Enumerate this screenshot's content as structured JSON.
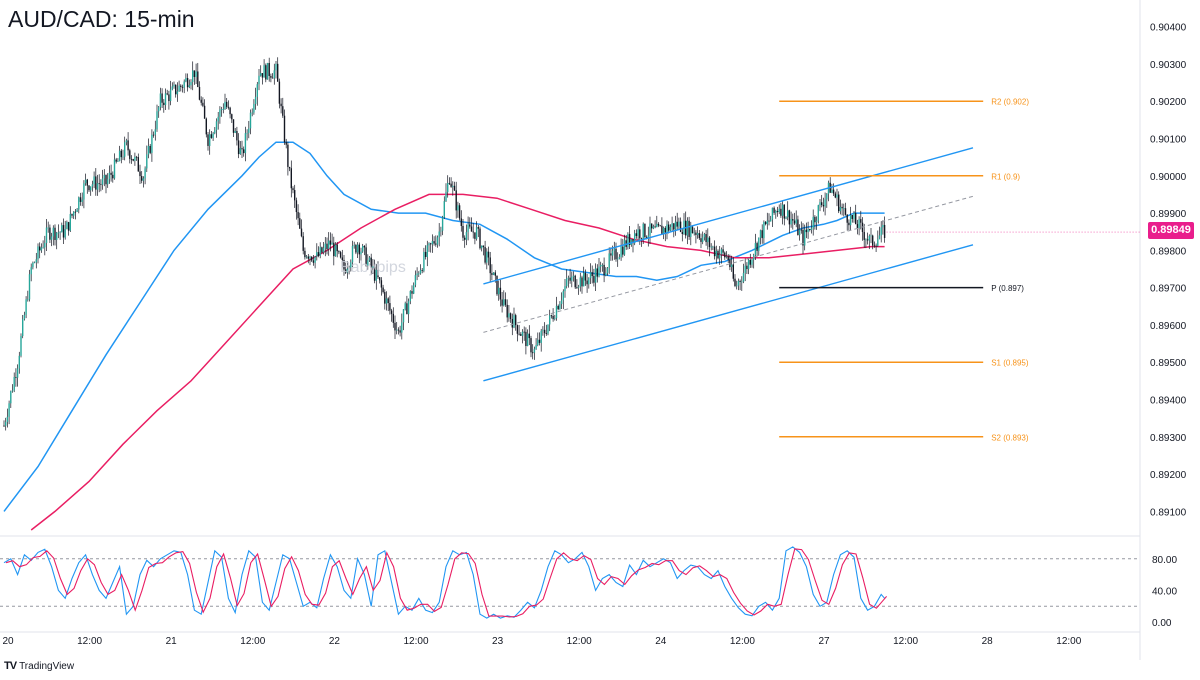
{
  "chart": {
    "title": "AUD/CAD: 15-min",
    "brand": "TradingView",
    "last_price_label": "0.89849",
    "colors": {
      "up": "#26a69a",
      "down": "#131722",
      "ma_fast": "#2196f3",
      "ma_slow": "#e91e63",
      "pivot_orange": "#f7931a",
      "pivot": "#131722",
      "channel": "#2196f3",
      "price_badge": "#e91e8c"
    }
  },
  "chart_data": [
    {
      "type": "candlestick",
      "title": "AUD/CAD: 15-min",
      "xlabel": "",
      "ylabel": "",
      "ylim": [
        0.8905,
        0.9045
      ],
      "y_ticks": [
        "0.90400",
        "0.90300",
        "0.90200",
        "0.90100",
        "0.90000",
        "0.89900",
        "0.89800",
        "0.89700",
        "0.89600",
        "0.89500",
        "0.89400",
        "0.89300",
        "0.89200",
        "0.89100"
      ],
      "y_tick_values": [
        0.904,
        0.903,
        0.902,
        0.901,
        0.9,
        0.899,
        0.898,
        0.897,
        0.896,
        0.895,
        0.894,
        0.893,
        0.892,
        0.891
      ],
      "x_ticks": [
        "20",
        "12:00",
        "21",
        "12:00",
        "22",
        "12:00",
        "23",
        "12:00",
        "24",
        "12:00",
        "27",
        "12:00",
        "28",
        "12:00"
      ],
      "x_tick_index": [
        0,
        48,
        96,
        144,
        192,
        240,
        288,
        336,
        384,
        432,
        480,
        528,
        576,
        624
      ],
      "last_price": 0.89849,
      "close_path": [
        [
          0,
          0.8933
        ],
        [
          8,
          0.895
        ],
        [
          16,
          0.8975
        ],
        [
          26,
          0.8985
        ],
        [
          36,
          0.8985
        ],
        [
          48,
          0.8998
        ],
        [
          60,
          0.8998
        ],
        [
          72,
          0.9008
        ],
        [
          82,
          0.9
        ],
        [
          92,
          0.902
        ],
        [
          104,
          0.9024
        ],
        [
          112,
          0.9028
        ],
        [
          120,
          0.901
        ],
        [
          130,
          0.902
        ],
        [
          140,
          0.9005
        ],
        [
          150,
          0.9028
        ],
        [
          160,
          0.9028
        ],
        [
          168,
          0.9
        ],
        [
          176,
          0.898
        ],
        [
          184,
          0.8978
        ],
        [
          192,
          0.8982
        ],
        [
          200,
          0.8975
        ],
        [
          208,
          0.8982
        ],
        [
          220,
          0.8972
        ],
        [
          232,
          0.8958
        ],
        [
          244,
          0.8975
        ],
        [
          256,
          0.8985
        ],
        [
          262,
          0.9
        ],
        [
          270,
          0.8985
        ],
        [
          278,
          0.8985
        ],
        [
          286,
          0.8975
        ],
        [
          294,
          0.8965
        ],
        [
          304,
          0.8958
        ],
        [
          312,
          0.8953
        ],
        [
          322,
          0.8962
        ],
        [
          332,
          0.8972
        ],
        [
          342,
          0.8972
        ],
        [
          352,
          0.8975
        ],
        [
          362,
          0.898
        ],
        [
          372,
          0.8985
        ],
        [
          384,
          0.8985
        ],
        [
          396,
          0.8987
        ],
        [
          408,
          0.8985
        ],
        [
          418,
          0.898
        ],
        [
          426,
          0.8978
        ],
        [
          430,
          0.897
        ],
        [
          436,
          0.8975
        ],
        [
          446,
          0.8985
        ],
        [
          456,
          0.8992
        ],
        [
          464,
          0.8988
        ],
        [
          470,
          0.8983
        ],
        [
          478,
          0.899
        ],
        [
          486,
          0.8997
        ],
        [
          494,
          0.899
        ],
        [
          502,
          0.8987
        ],
        [
          510,
          0.8982
        ],
        [
          518,
          0.8985
        ]
      ],
      "annotation": "Babypips"
    },
    {
      "type": "line",
      "name": "moving averages",
      "series": [
        {
          "values_path": [
            [
              0,
              0.891
            ],
            [
              20,
              0.8922
            ],
            [
              40,
              0.8937
            ],
            [
              60,
              0.8952
            ],
            [
              80,
              0.8966
            ],
            [
              100,
              0.898
            ],
            [
              120,
              0.8991
            ],
            [
              140,
              0.9
            ],
            [
              150,
              0.9005
            ],
            [
              160,
              0.9009
            ],
            [
              170,
              0.9009
            ],
            [
              180,
              0.9006
            ],
            [
              190,
              0.9
            ],
            [
              200,
              0.8995
            ],
            [
              216,
              0.8991
            ],
            [
              232,
              0.899
            ],
            [
              248,
              0.899
            ],
            [
              264,
              0.8988
            ],
            [
              280,
              0.8987
            ],
            [
              296,
              0.8983
            ],
            [
              312,
              0.8978
            ],
            [
              328,
              0.8975
            ],
            [
              344,
              0.8974
            ],
            [
              360,
              0.8973
            ],
            [
              372,
              0.8973
            ],
            [
              384,
              0.8972
            ],
            [
              396,
              0.8973
            ],
            [
              410,
              0.8976
            ],
            [
              424,
              0.8977
            ],
            [
              440,
              0.898
            ],
            [
              458,
              0.8984
            ],
            [
              470,
              0.8986
            ],
            [
              482,
              0.8987
            ],
            [
              490,
              0.8988
            ],
            [
              500,
              0.899
            ],
            [
              508,
              0.899
            ],
            [
              518,
              0.899
            ]
          ]
        },
        {
          "values_path": [
            [
              16,
              0.8905
            ],
            [
              30,
              0.891
            ],
            [
              50,
              0.8918
            ],
            [
              70,
              0.8928
            ],
            [
              90,
              0.8937
            ],
            [
              110,
              0.8945
            ],
            [
              130,
              0.8955
            ],
            [
              150,
              0.8965
            ],
            [
              170,
              0.8975
            ],
            [
              190,
              0.898
            ],
            [
              210,
              0.8986
            ],
            [
              230,
              0.8991
            ],
            [
              250,
              0.8995
            ],
            [
              270,
              0.8995
            ],
            [
              290,
              0.8994
            ],
            [
              310,
              0.8991
            ],
            [
              330,
              0.8988
            ],
            [
              350,
              0.8986
            ],
            [
              370,
              0.8983
            ],
            [
              390,
              0.8981
            ],
            [
              410,
              0.898
            ],
            [
              430,
              0.8978
            ],
            [
              450,
              0.8978
            ],
            [
              470,
              0.8979
            ],
            [
              490,
              0.898
            ],
            [
              510,
              0.8981
            ],
            [
              518,
              0.8981
            ]
          ]
        }
      ]
    },
    {
      "type": "line",
      "name": "pivot levels",
      "levels": [
        {
          "label": "R2 (0.902)",
          "value": 0.902
        },
        {
          "label": "R1 (0.9)",
          "value": 0.9
        },
        {
          "label": "P (0.897)",
          "value": 0.897
        },
        {
          "label": "S1 (0.895)",
          "value": 0.895
        },
        {
          "label": "S2 (0.893)",
          "value": 0.893
        }
      ],
      "x_start_index": 456,
      "x_end_index": 576
    },
    {
      "type": "line",
      "name": "ascending channel",
      "upper": [
        [
          282,
          0.8971
        ],
        [
          570,
          0.90075
        ]
      ],
      "lower": [
        [
          282,
          0.8945
        ],
        [
          570,
          0.89815
        ]
      ],
      "mid": [
        [
          282,
          0.8958
        ],
        [
          570,
          0.89945
        ]
      ]
    },
    {
      "type": "line",
      "name": "stochastic oscillator",
      "ylim": [
        -10,
        110
      ],
      "y_ticks": [
        "80.00",
        "40.00",
        "0.00"
      ],
      "y_tick_values": [
        80,
        40,
        0
      ],
      "upper_level": 80,
      "lower_level": 20,
      "path": [
        [
          0,
          75
        ],
        [
          4,
          80
        ],
        [
          8,
          60
        ],
        [
          12,
          85
        ],
        [
          16,
          78
        ],
        [
          20,
          88
        ],
        [
          24,
          92
        ],
        [
          28,
          70
        ],
        [
          32,
          40
        ],
        [
          36,
          30
        ],
        [
          40,
          55
        ],
        [
          44,
          75
        ],
        [
          48,
          85
        ],
        [
          52,
          60
        ],
        [
          56,
          40
        ],
        [
          60,
          30
        ],
        [
          64,
          50
        ],
        [
          68,
          70
        ],
        [
          72,
          10
        ],
        [
          76,
          20
        ],
        [
          80,
          60
        ],
        [
          84,
          78
        ],
        [
          88,
          70
        ],
        [
          92,
          80
        ],
        [
          96,
          85
        ],
        [
          100,
          90
        ],
        [
          104,
          88
        ],
        [
          108,
          60
        ],
        [
          112,
          15
        ],
        [
          116,
          10
        ],
        [
          120,
          50
        ],
        [
          124,
          90
        ],
        [
          128,
          82
        ],
        [
          132,
          30
        ],
        [
          136,
          12
        ],
        [
          140,
          60
        ],
        [
          144,
          90
        ],
        [
          148,
          82
        ],
        [
          152,
          25
        ],
        [
          156,
          15
        ],
        [
          160,
          50
        ],
        [
          164,
          85
        ],
        [
          168,
          80
        ],
        [
          172,
          50
        ],
        [
          176,
          20
        ],
        [
          180,
          25
        ],
        [
          184,
          18
        ],
        [
          188,
          55
        ],
        [
          192,
          85
        ],
        [
          196,
          70
        ],
        [
          200,
          40
        ],
        [
          204,
          30
        ],
        [
          208,
          80
        ],
        [
          212,
          60
        ],
        [
          216,
          20
        ],
        [
          220,
          85
        ],
        [
          224,
          90
        ],
        [
          228,
          50
        ],
        [
          232,
          10
        ],
        [
          236,
          20
        ],
        [
          240,
          15
        ],
        [
          244,
          30
        ],
        [
          248,
          15
        ],
        [
          252,
          12
        ],
        [
          256,
          25
        ],
        [
          260,
          70
        ],
        [
          264,
          90
        ],
        [
          268,
          85
        ],
        [
          272,
          88
        ],
        [
          276,
          60
        ],
        [
          280,
          10
        ],
        [
          284,
          5
        ],
        [
          288,
          10
        ],
        [
          292,
          5
        ],
        [
          296,
          8
        ],
        [
          300,
          6
        ],
        [
          304,
          15
        ],
        [
          308,
          25
        ],
        [
          312,
          18
        ],
        [
          316,
          40
        ],
        [
          320,
          70
        ],
        [
          324,
          90
        ],
        [
          328,
          85
        ],
        [
          332,
          75
        ],
        [
          336,
          80
        ],
        [
          340,
          88
        ],
        [
          344,
          70
        ],
        [
          348,
          40
        ],
        [
          352,
          55
        ],
        [
          356,
          60
        ],
        [
          360,
          50
        ],
        [
          364,
          45
        ],
        [
          368,
          72
        ],
        [
          372,
          60
        ],
        [
          376,
          78
        ],
        [
          380,
          70
        ],
        [
          384,
          75
        ],
        [
          388,
          80
        ],
        [
          392,
          75
        ],
        [
          396,
          55
        ],
        [
          400,
          65
        ],
        [
          404,
          72
        ],
        [
          408,
          70
        ],
        [
          412,
          60
        ],
        [
          416,
          55
        ],
        [
          420,
          65
        ],
        [
          424,
          45
        ],
        [
          428,
          30
        ],
        [
          432,
          18
        ],
        [
          436,
          10
        ],
        [
          440,
          8
        ],
        [
          444,
          20
        ],
        [
          448,
          25
        ],
        [
          452,
          15
        ],
        [
          456,
          30
        ],
        [
          460,
          90
        ],
        [
          464,
          95
        ],
        [
          468,
          88
        ],
        [
          472,
          70
        ],
        [
          476,
          35
        ],
        [
          480,
          20
        ],
        [
          484,
          25
        ],
        [
          488,
          60
        ],
        [
          492,
          85
        ],
        [
          496,
          90
        ],
        [
          500,
          82
        ],
        [
          504,
          30
        ],
        [
          508,
          15
        ],
        [
          512,
          20
        ],
        [
          516,
          35
        ],
        [
          518,
          30
        ]
      ]
    }
  ]
}
